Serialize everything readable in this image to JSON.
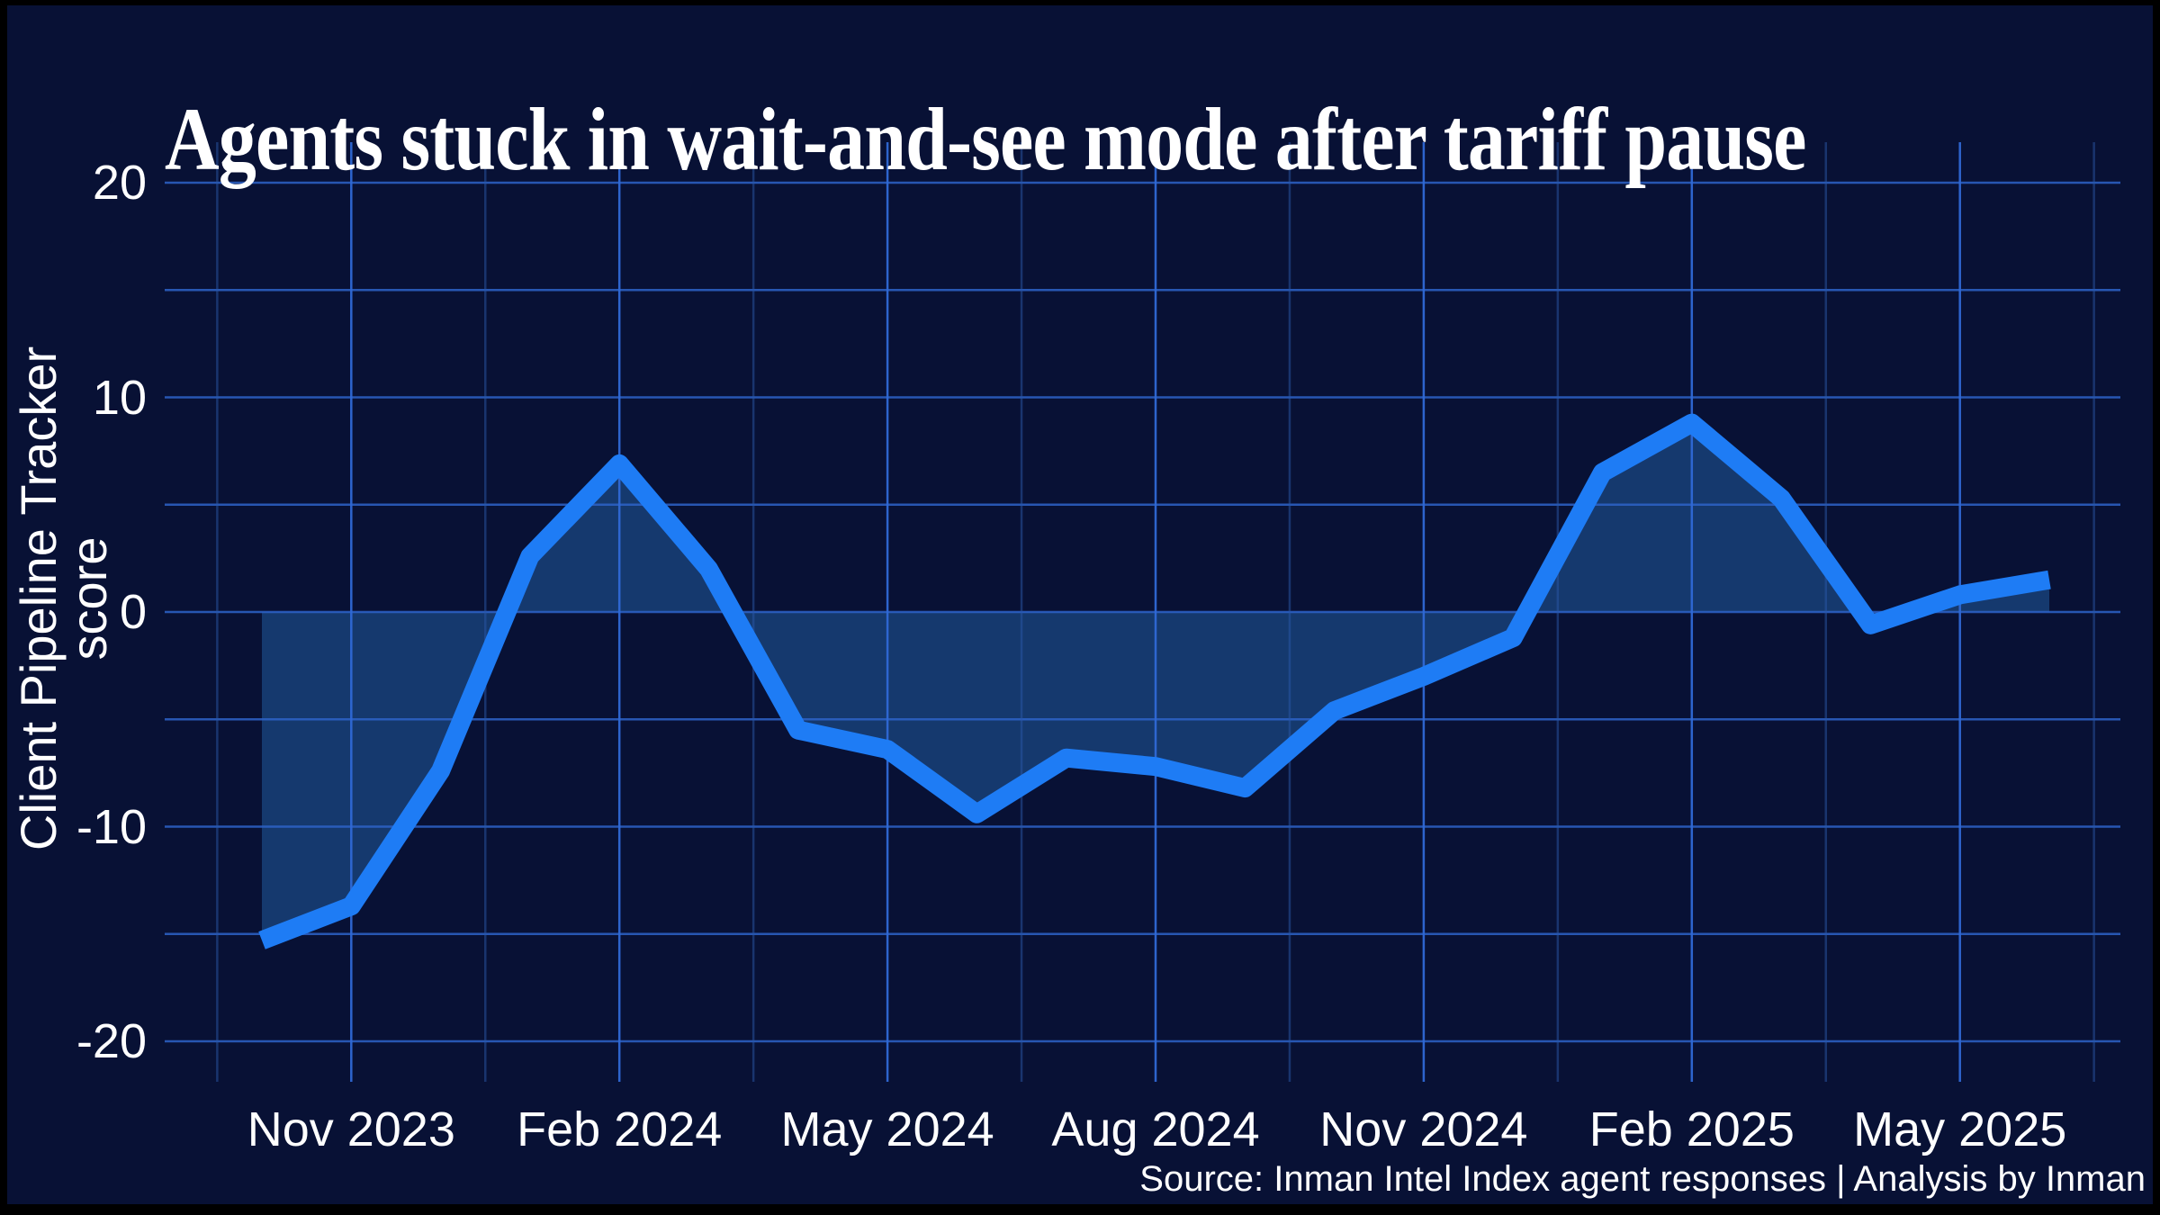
{
  "title": "Agents stuck in wait-and-see mode after tariff pause",
  "source": "Source: Inman Intel Index agent responses | Analysis by Inman",
  "chart_data": {
    "type": "area",
    "title": "Agents stuck in wait-and-see mode after tariff pause",
    "xlabel": "",
    "ylabel": "Client Pipeline Tracker score",
    "ylim": [
      -20,
      20
    ],
    "y_ticks": [
      20,
      10,
      0,
      -10,
      -20
    ],
    "y_grid_step": 5,
    "grid": true,
    "legend": "none",
    "baseline": 0,
    "x": [
      "Oct 2023",
      "Nov 2023",
      "Dec 2023",
      "Jan 2024",
      "Feb 2024",
      "Mar 2024",
      "Apr 2024",
      "May 2024",
      "Jun 2024",
      "Jul 2024",
      "Aug 2024",
      "Sep 2024",
      "Oct 2024",
      "Nov 2024",
      "Dec 2024",
      "Jan 2025",
      "Feb 2025",
      "Mar 2025",
      "Apr 2025",
      "May 2025",
      "Jun 2025"
    ],
    "values": [
      -15.3,
      -13.7,
      -7.4,
      2.6,
      6.9,
      2.0,
      -5.5,
      -6.4,
      -9.4,
      -6.8,
      -7.2,
      -8.2,
      -4.6,
      -3.0,
      -1.2,
      6.5,
      8.8,
      5.3,
      -0.6,
      0.8,
      1.5
    ],
    "x_tick_labels": [
      "Nov 2023",
      "Feb 2024",
      "May 2024",
      "Aug 2024",
      "Nov 2024",
      "Feb 2025",
      "May 2025"
    ],
    "x_tick_month_indices": [
      1,
      4,
      7,
      10,
      13,
      16,
      19
    ],
    "series_name": "Client Pipeline Tracker score",
    "colors": {
      "background": "#081135",
      "frame": "#000000",
      "line": "#1e7cf5",
      "fill": "#15396e",
      "grid_major": "#3069d6",
      "grid_minor": "#2a57a8",
      "grid_horizontal": "#2d63c8",
      "text": "#ffffff"
    }
  }
}
